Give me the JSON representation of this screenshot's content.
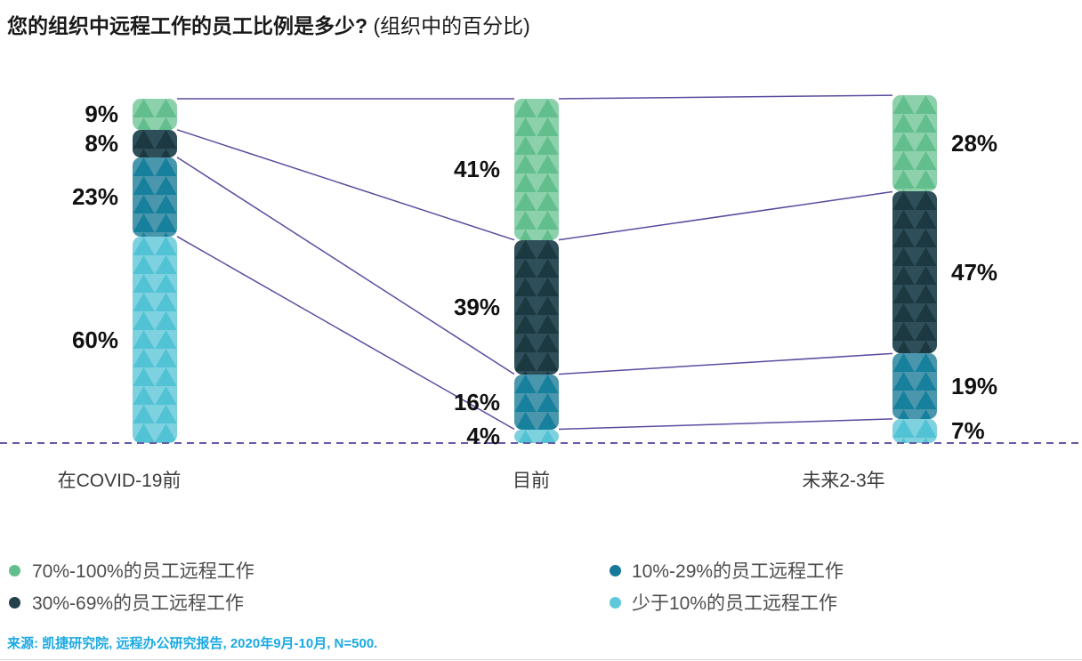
{
  "title": {
    "main": "您的组织中远程工作的员工比例是多少?",
    "sub": "(组织中的百分比)"
  },
  "source": {
    "text": "来源: 凯捷研究院, 远程办公研究报告, 2020年9月-10月, N=500."
  },
  "colors": {
    "connector_purple": "#5b4b9e",
    "baseline_purple": "#655aa8",
    "source_blue": "#1ba9e3",
    "label_black": "#111111",
    "category_gray": "#3c3c3c",
    "legend_gray": "#4d4d4d"
  },
  "chart_data": {
    "type": "bar",
    "subtype": "stacked-slope-columns",
    "title": "您的组织中远程工作的员工比例是多少? (组织中的百分比)",
    "categories": [
      "在COVID-19前",
      "目前",
      "未来2-3年"
    ],
    "value_suffix": "%",
    "series": [
      {
        "name": "70%-100%的员工远程工作",
        "values": [
          9,
          41,
          28
        ],
        "base": "#8cd1ab",
        "tri": "#63be8d",
        "dot": "#63be8d"
      },
      {
        "name": "30%-69%的员工远程工作",
        "values": [
          8,
          39,
          47
        ],
        "base": "#2e4e59",
        "tri": "#1c3840",
        "dot": "#23404b"
      },
      {
        "name": "10%-29%的员工远程工作",
        "values": [
          23,
          16,
          19
        ],
        "base": "#4a96ad",
        "tri": "#17809d",
        "dot": "#16799b"
      },
      {
        "name": "少于10%的员工远程工作",
        "values": [
          60,
          4,
          7
        ],
        "base": "#7ed1de",
        "tri": "#52c2d5",
        "dot": "#5fc8da"
      }
    ],
    "legend_columns": [
      [
        0,
        1
      ],
      [
        2,
        3
      ]
    ],
    "baseline": "dashed",
    "connectors": "segment-boundaries-linked-between-columns",
    "ylim": [
      0,
      100
    ],
    "grid": false
  }
}
